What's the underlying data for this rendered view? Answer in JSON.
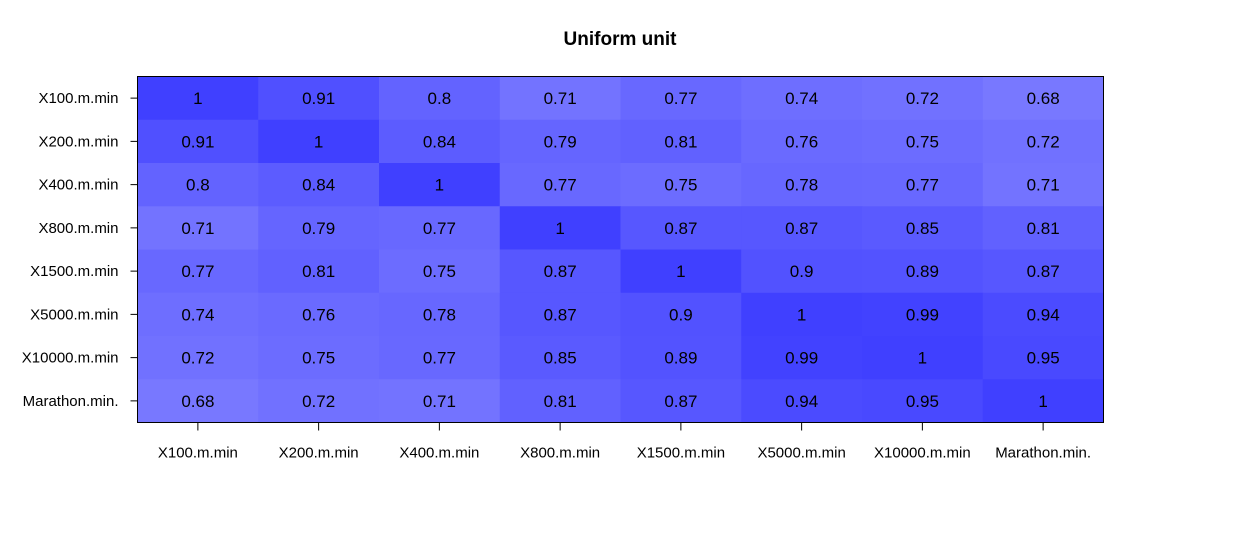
{
  "chart_data": {
    "type": "heatmap",
    "title": "Uniform unit",
    "xlabel": "",
    "ylabel": "",
    "x_categories": [
      "X100.m.min",
      "X200.m.min",
      "X400.m.min",
      "X800.m.min",
      "X1500.m.min",
      "X5000.m.min",
      "X10000.m.min",
      "Marathon.min."
    ],
    "y_categories": [
      "X100.m.min",
      "X200.m.min",
      "X400.m.min",
      "X800.m.min",
      "X1500.m.min",
      "X5000.m.min",
      "X10000.m.min",
      "Marathon.min."
    ],
    "values": [
      [
        1,
        0.91,
        0.8,
        0.71,
        0.77,
        0.74,
        0.72,
        0.68
      ],
      [
        0.91,
        1,
        0.84,
        0.79,
        0.81,
        0.76,
        0.75,
        0.72
      ],
      [
        0.8,
        0.84,
        1,
        0.77,
        0.75,
        0.78,
        0.77,
        0.71
      ],
      [
        0.71,
        0.79,
        0.77,
        1,
        0.87,
        0.87,
        0.85,
        0.81
      ],
      [
        0.77,
        0.81,
        0.75,
        0.87,
        1,
        0.9,
        0.89,
        0.87
      ],
      [
        0.74,
        0.76,
        0.78,
        0.87,
        0.9,
        1,
        0.99,
        0.94
      ],
      [
        0.72,
        0.75,
        0.77,
        0.85,
        0.89,
        0.99,
        1,
        0.95
      ],
      [
        0.68,
        0.72,
        0.71,
        0.81,
        0.87,
        0.94,
        0.95,
        1
      ]
    ],
    "color_scale": {
      "low_value": 0.68,
      "high_value": 1,
      "low_color": "#7878ff",
      "high_color": "#4040ff"
    },
    "border_color": "#000000",
    "grid": false,
    "legend": "none"
  }
}
